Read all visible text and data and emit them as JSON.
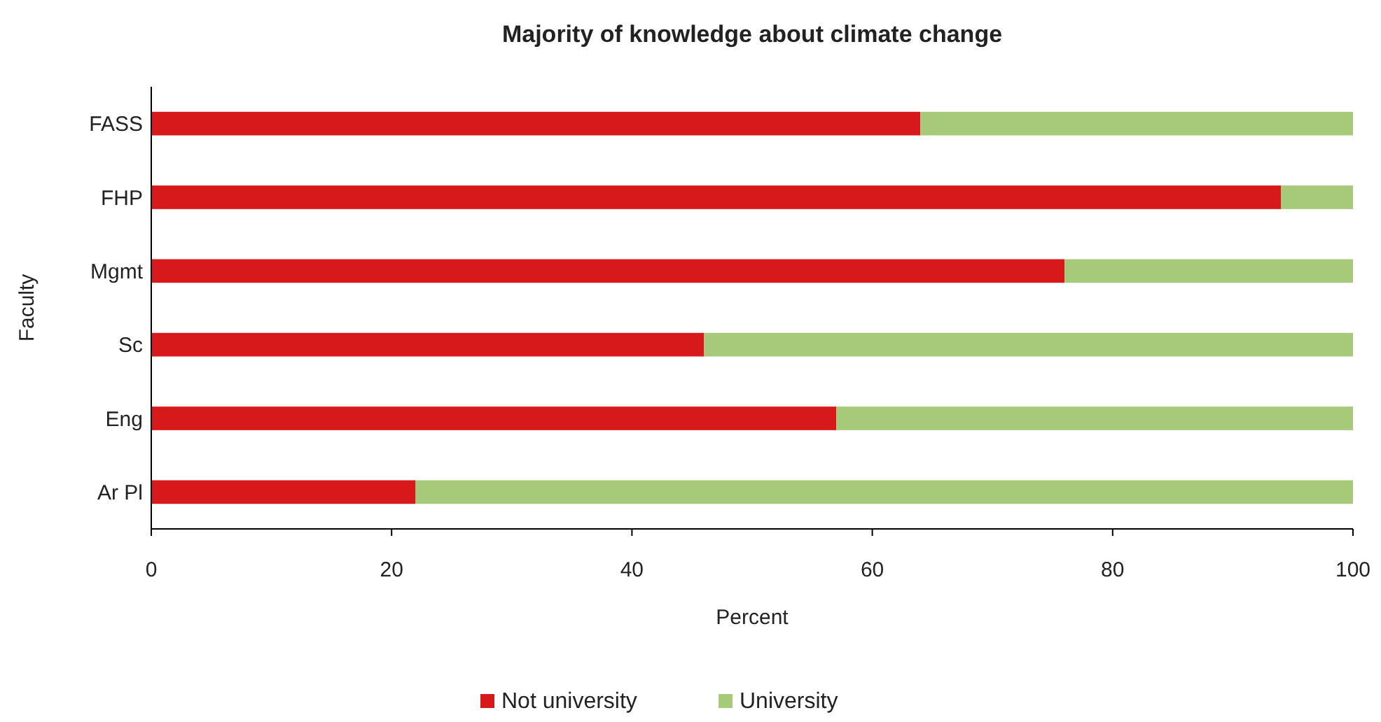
{
  "chart_data": {
    "type": "bar",
    "title": "Majority of knowledge about climate change",
    "xlabel": "Percent",
    "ylabel": "Faculty",
    "orientation": "horizontal",
    "stacked": true,
    "categories": [
      "FASS",
      "FHP",
      "Mgmt",
      "Sc",
      "Eng",
      "Ar Pl"
    ],
    "series": [
      {
        "name": "Not university",
        "color": "#d7191c",
        "values": [
          64,
          94,
          76,
          46,
          57,
          22
        ]
      },
      {
        "name": "University",
        "color": "#a6c97a",
        "values": [
          36,
          6,
          24,
          54,
          43,
          78
        ]
      }
    ],
    "xlim": [
      0,
      100
    ],
    "xticks": [
      0,
      20,
      40,
      60,
      80,
      100
    ],
    "grid": false,
    "legend": "bottom"
  }
}
